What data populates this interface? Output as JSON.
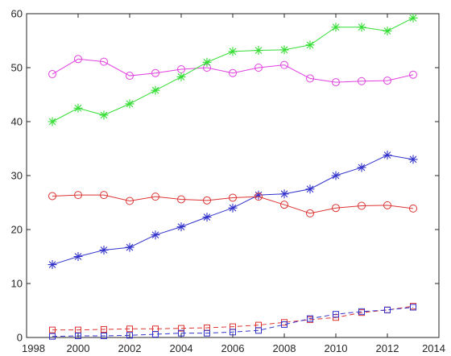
{
  "chart_data": {
    "type": "line",
    "title": "",
    "xlabel": "",
    "ylabel": "",
    "xlim": [
      1998,
      2014
    ],
    "ylim": [
      0,
      60
    ],
    "xticks": [
      1998,
      2000,
      2002,
      2004,
      2006,
      2008,
      2010,
      2012,
      2014
    ],
    "yticks": [
      0,
      10,
      20,
      30,
      40,
      50,
      60
    ],
    "grid": false,
    "box": true,
    "x": [
      1999,
      2000,
      2001,
      2002,
      2003,
      2004,
      2005,
      2006,
      2007,
      2008,
      2009,
      2010,
      2011,
      2012,
      2013
    ],
    "series": [
      {
        "color": "#e040e0",
        "marker": "circle",
        "linestyle": "solid",
        "values": [
          48.8,
          51.6,
          51.1,
          48.5,
          49.0,
          49.7,
          50.0,
          49.0,
          50.0,
          50.5,
          48.0,
          47.3,
          47.5,
          47.6,
          48.7
        ]
      },
      {
        "color": "#33dd33",
        "marker": "asterisk",
        "linestyle": "solid",
        "values": [
          40.0,
          42.5,
          41.2,
          43.3,
          45.8,
          48.3,
          51.0,
          53.0,
          53.2,
          53.3,
          54.2,
          57.5,
          57.5,
          56.8,
          59.2
        ]
      },
      {
        "color": "#3333cc",
        "marker": "asterisk",
        "linestyle": "solid",
        "values": [
          13.5,
          15.0,
          16.2,
          16.7,
          19.0,
          20.5,
          22.3,
          24.0,
          26.4,
          26.6,
          27.5,
          30.0,
          31.5,
          33.8,
          33.0
        ]
      },
      {
        "color": "#dd3333",
        "marker": "circle",
        "linestyle": "solid",
        "values": [
          26.2,
          26.4,
          26.4,
          25.3,
          26.1,
          25.6,
          25.4,
          25.9,
          26.1,
          24.6,
          23.0,
          24.0,
          24.4,
          24.5,
          23.9
        ]
      },
      {
        "color": "#dd3333",
        "marker": "square",
        "linestyle": "dashed",
        "values": [
          1.4,
          1.4,
          1.5,
          1.6,
          1.6,
          1.7,
          1.8,
          2.0,
          2.3,
          2.8,
          3.3,
          3.7,
          4.6,
          5.1,
          5.8
        ]
      },
      {
        "color": "#3333cc",
        "marker": "square",
        "linestyle": "dashed",
        "values": [
          0.2,
          0.3,
          0.3,
          0.4,
          0.6,
          0.8,
          0.8,
          1.0,
          1.3,
          2.4,
          3.5,
          4.3,
          4.8,
          5.1,
          5.6
        ]
      }
    ]
  }
}
